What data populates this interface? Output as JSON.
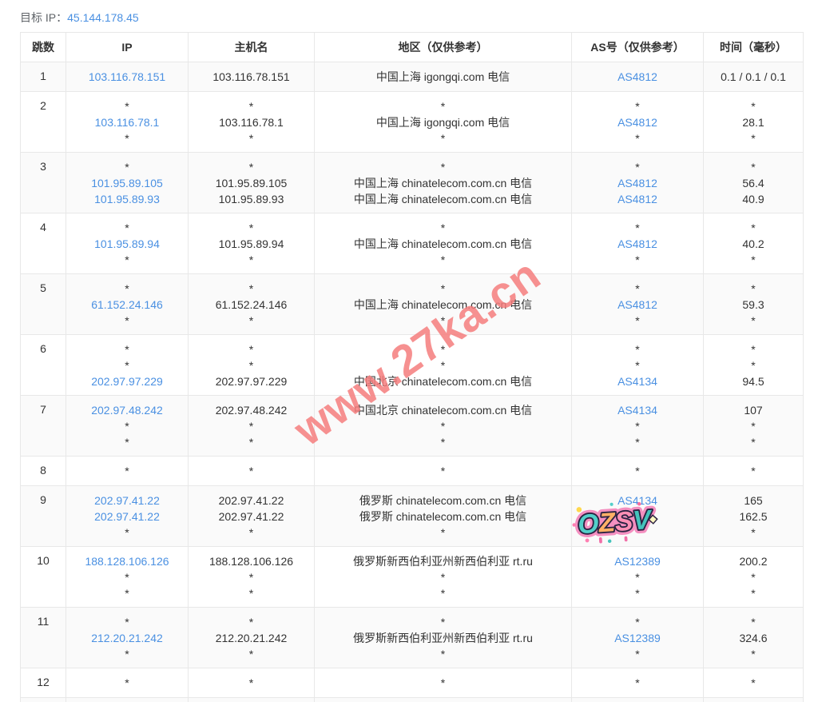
{
  "target": {
    "label": "目标 IP：",
    "ip": "45.144.178.45"
  },
  "table": {
    "headers": [
      "跳数",
      "IP",
      "主机名",
      "地区（仅供参考）",
      "AS号（仅供参考）",
      "时间（毫秒）"
    ],
    "rows": [
      {
        "hop": "1",
        "ip": [
          "103.116.78.151"
        ],
        "host": [
          "103.116.78.151"
        ],
        "region": [
          "中国上海 igongqi.com 电信"
        ],
        "asn": [
          "AS4812"
        ],
        "time": [
          "0.1 / 0.1 / 0.1"
        ]
      },
      {
        "hop": "2",
        "ip": [
          "*",
          "103.116.78.1",
          "*"
        ],
        "host": [
          "*",
          "103.116.78.1",
          "*"
        ],
        "region": [
          "*",
          "中国上海 igongqi.com 电信",
          "*"
        ],
        "asn": [
          "*",
          "AS4812",
          "*"
        ],
        "time": [
          "*",
          "28.1",
          "*"
        ]
      },
      {
        "hop": "3",
        "ip": [
          "*",
          "101.95.89.105",
          "101.95.89.93"
        ],
        "host": [
          "*",
          "101.95.89.105",
          "101.95.89.93"
        ],
        "region": [
          "*",
          "中国上海 chinatelecom.com.cn 电信",
          "中国上海 chinatelecom.com.cn 电信"
        ],
        "asn": [
          "*",
          "AS4812",
          "AS4812"
        ],
        "time": [
          "*",
          "56.4",
          "40.9"
        ]
      },
      {
        "hop": "4",
        "ip": [
          "*",
          "101.95.89.94",
          "*"
        ],
        "host": [
          "*",
          "101.95.89.94",
          "*"
        ],
        "region": [
          "*",
          "中国上海 chinatelecom.com.cn 电信",
          "*"
        ],
        "asn": [
          "*",
          "AS4812",
          "*"
        ],
        "time": [
          "*",
          "40.2",
          "*"
        ]
      },
      {
        "hop": "5",
        "ip": [
          "*",
          "61.152.24.146",
          "*"
        ],
        "host": [
          "*",
          "61.152.24.146",
          "*"
        ],
        "region": [
          "*",
          "中国上海 chinatelecom.com.cn 电信",
          "*"
        ],
        "asn": [
          "*",
          "AS4812",
          "*"
        ],
        "time": [
          "*",
          "59.3",
          "*"
        ]
      },
      {
        "hop": "6",
        "ip": [
          "*",
          "*",
          "202.97.97.229"
        ],
        "host": [
          "*",
          "*",
          "202.97.97.229"
        ],
        "region": [
          "*",
          "*",
          "中国北京 chinatelecom.com.cn 电信"
        ],
        "asn": [
          "*",
          "*",
          "AS4134"
        ],
        "time": [
          "*",
          "*",
          "94.5"
        ]
      },
      {
        "hop": "7",
        "ip": [
          "202.97.48.242",
          "*",
          "*"
        ],
        "host": [
          "202.97.48.242",
          "*",
          "*"
        ],
        "region": [
          "中国北京 chinatelecom.com.cn 电信",
          "*",
          "*"
        ],
        "asn": [
          "AS4134",
          "*",
          "*"
        ],
        "time": [
          "107",
          "*",
          "*"
        ]
      },
      {
        "hop": "8",
        "ip": [
          "*"
        ],
        "host": [
          "*"
        ],
        "region": [
          "*"
        ],
        "asn": [
          "*"
        ],
        "time": [
          "*"
        ]
      },
      {
        "hop": "9",
        "ip": [
          "202.97.41.22",
          "202.97.41.22",
          "*"
        ],
        "host": [
          "202.97.41.22",
          "202.97.41.22",
          "*"
        ],
        "region": [
          "俄罗斯 chinatelecom.com.cn 电信",
          "俄罗斯 chinatelecom.com.cn 电信",
          "*"
        ],
        "asn": [
          "AS4134",
          "",
          ""
        ],
        "time": [
          "165",
          "162.5",
          "*"
        ]
      },
      {
        "hop": "10",
        "ip": [
          "188.128.106.126",
          "*",
          "*"
        ],
        "host": [
          "188.128.106.126",
          "*",
          "*"
        ],
        "region": [
          "俄罗斯新西伯利亚州新西伯利亚 rt.ru",
          "*",
          "*"
        ],
        "asn": [
          "AS12389",
          "*",
          "*"
        ],
        "time": [
          "200.2",
          "*",
          "*"
        ]
      },
      {
        "hop": "11",
        "ip": [
          "*",
          "212.20.21.242",
          "*"
        ],
        "host": [
          "*",
          "212.20.21.242",
          "*"
        ],
        "region": [
          "*",
          "俄罗斯新西伯利亚州新西伯利亚 rt.ru",
          "*"
        ],
        "asn": [
          "*",
          "AS12389",
          "*"
        ],
        "time": [
          "*",
          "324.6",
          "*"
        ]
      },
      {
        "hop": "12",
        "ip": [
          "*"
        ],
        "host": [
          "*"
        ],
        "region": [
          "*"
        ],
        "asn": [
          "*"
        ],
        "time": [
          "*"
        ]
      }
    ]
  },
  "watermark": {
    "text": "www.27ka.cn",
    "color": "rgba(244,125,125,0.85)"
  },
  "sticker": {
    "letters": [
      "O",
      "Z",
      "S",
      "V"
    ]
  },
  "colors": {
    "link": "#4a90e2",
    "text": "#333333",
    "stripe": "#fafafa",
    "border": "#e8e8e8"
  }
}
